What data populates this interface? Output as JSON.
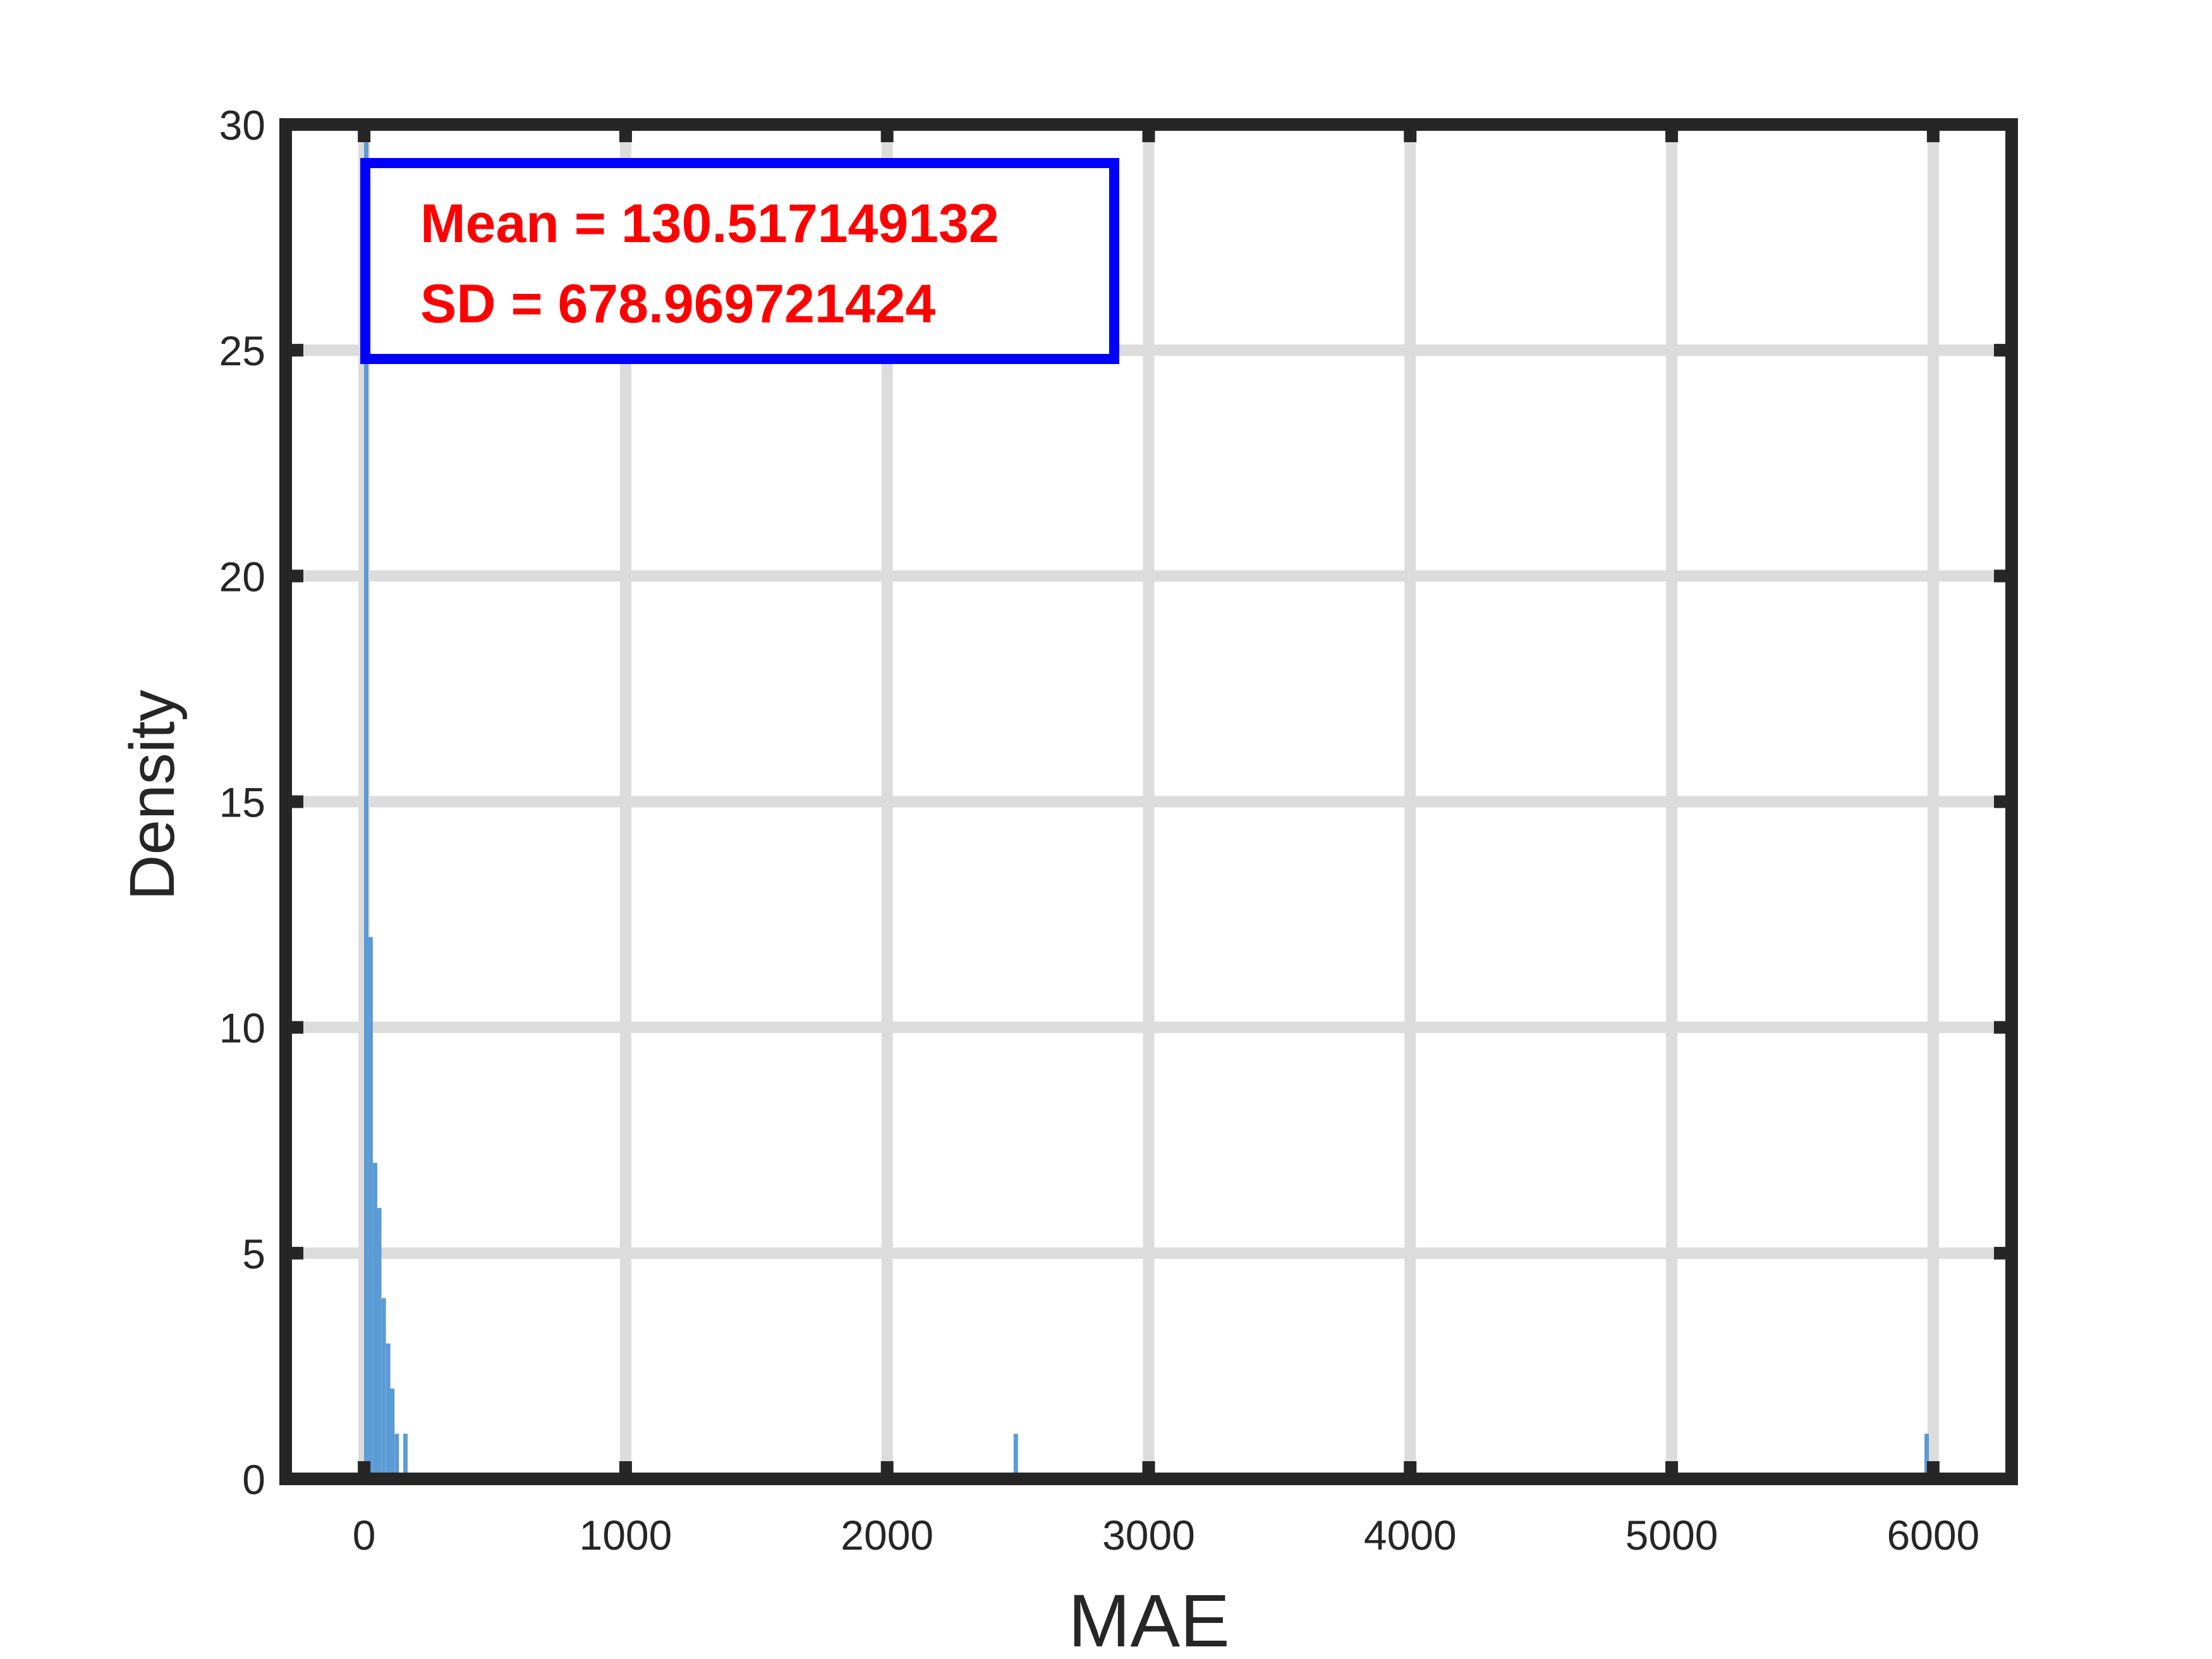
{
  "chart_data": {
    "type": "bar",
    "subtype": "histogram",
    "title": "",
    "xlabel": "MAE",
    "ylabel": "Density",
    "xlim": [
      -300,
      6300
    ],
    "ylim": [
      0,
      30
    ],
    "xticks": [
      0,
      1000,
      2000,
      3000,
      4000,
      5000,
      6000
    ],
    "yticks": [
      0,
      5,
      10,
      15,
      20,
      25,
      30
    ],
    "grid": true,
    "bar_color": "#5b9bd5",
    "bin_width": 16.7,
    "bins": [
      {
        "x": 8,
        "y": 30
      },
      {
        "x": 25,
        "y": 12
      },
      {
        "x": 42,
        "y": 7
      },
      {
        "x": 58,
        "y": 6
      },
      {
        "x": 75,
        "y": 4
      },
      {
        "x": 92,
        "y": 3
      },
      {
        "x": 108,
        "y": 2
      },
      {
        "x": 125,
        "y": 1
      },
      {
        "x": 158,
        "y": 1
      },
      {
        "x": 2492,
        "y": 1
      },
      {
        "x": 5975,
        "y": 1
      }
    ],
    "annotation": {
      "lines": [
        "Mean = 130.517149132",
        "SD = 678.969721424"
      ],
      "text_color": "#ff0000",
      "border_color": "#0000ff"
    }
  }
}
